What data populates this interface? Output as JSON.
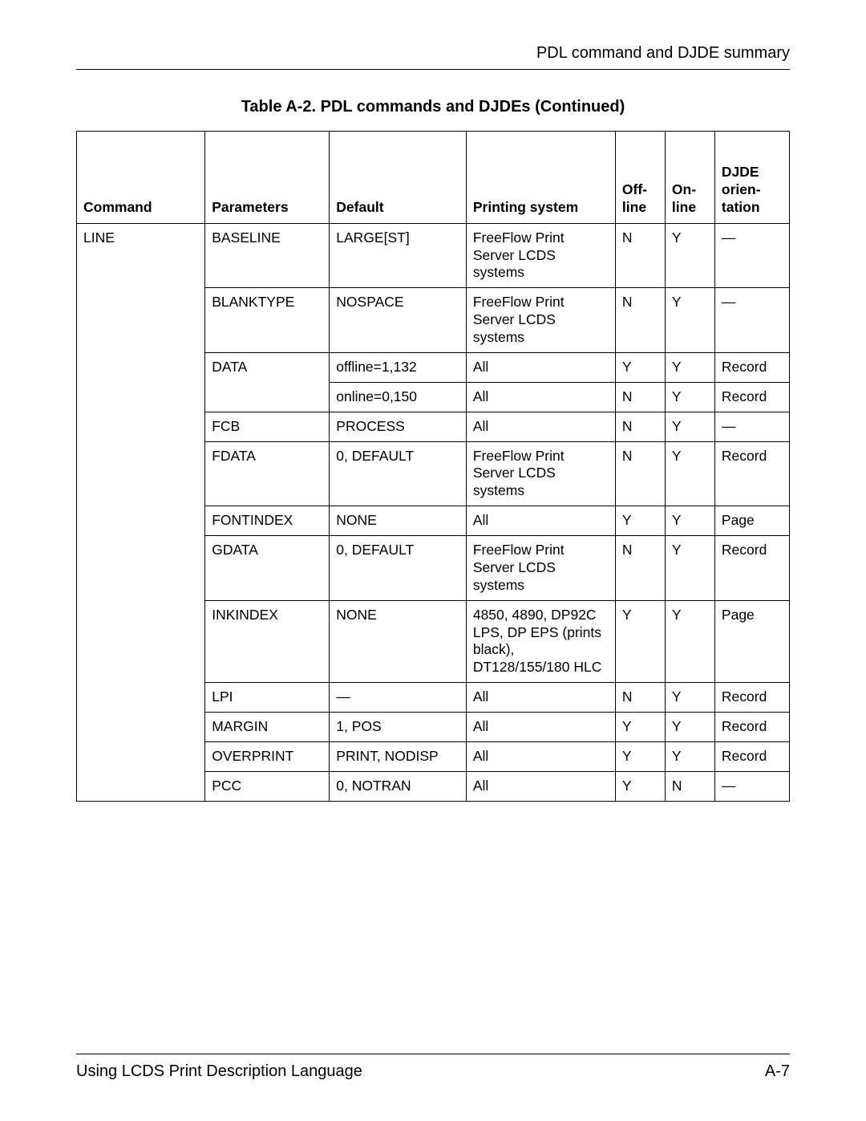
{
  "header": {
    "section_title": "PDL command and DJDE summary"
  },
  "table": {
    "title": "Table A-2. PDL commands and DJDEs (Continued)",
    "columns": [
      "Command",
      "Parameters",
      "Default",
      "Printing system",
      "Off-line",
      "On-line",
      "DJDE orien-tation"
    ],
    "command": "LINE",
    "rows": [
      {
        "param": "BASELINE",
        "default": "LARGE[ST]",
        "system": "FreeFlow Print Server LCDS systems",
        "off": "N",
        "on": "Y",
        "djde": "—"
      },
      {
        "param": "BLANKTYPE",
        "default": "NOSPACE",
        "system": "FreeFlow Print Server LCDS systems",
        "off": "N",
        "on": "Y",
        "djde": "—"
      },
      {
        "param": "DATA",
        "default": "offline=1,132",
        "system": "All",
        "off": "Y",
        "on": "Y",
        "djde": "Record"
      },
      {
        "param": "",
        "default": "online=0,150",
        "system": "All",
        "off": "N",
        "on": "Y",
        "djde": "Record"
      },
      {
        "param": "FCB",
        "default": "PROCESS",
        "system": "All",
        "off": "N",
        "on": "Y",
        "djde": "—"
      },
      {
        "param": "FDATA",
        "default": "0, DEFAULT",
        "system": "FreeFlow Print Server LCDS systems",
        "off": "N",
        "on": "Y",
        "djde": "Record"
      },
      {
        "param": "FONTINDEX",
        "default": "NONE",
        "system": "All",
        "off": "Y",
        "on": "Y",
        "djde": "Page"
      },
      {
        "param": "GDATA",
        "default": "0, DEFAULT",
        "system": "FreeFlow Print Server LCDS systems",
        "off": "N",
        "on": "Y",
        "djde": "Record"
      },
      {
        "param": "INKINDEX",
        "default": "NONE",
        "system": "4850, 4890, DP92C LPS, DP EPS (prints black), DT128/155/180 HLC",
        "off": "Y",
        "on": "Y",
        "djde": "Page"
      },
      {
        "param": "LPI",
        "default": "—",
        "system": "All",
        "off": "N",
        "on": "Y",
        "djde": "Record"
      },
      {
        "param": "MARGIN",
        "default": "1, POS",
        "system": "All",
        "off": "Y",
        "on": "Y",
        "djde": "Record"
      },
      {
        "param": "OVERPRINT",
        "default": "PRINT, NODISP",
        "system": "All",
        "off": "Y",
        "on": "Y",
        "djde": "Record"
      },
      {
        "param": "PCC",
        "default": "0, NOTRAN",
        "system": "All",
        "off": "Y",
        "on": "N",
        "djde": "—"
      }
    ]
  },
  "footer": {
    "left": "Using LCDS Print Description Language",
    "right": "A-7"
  }
}
